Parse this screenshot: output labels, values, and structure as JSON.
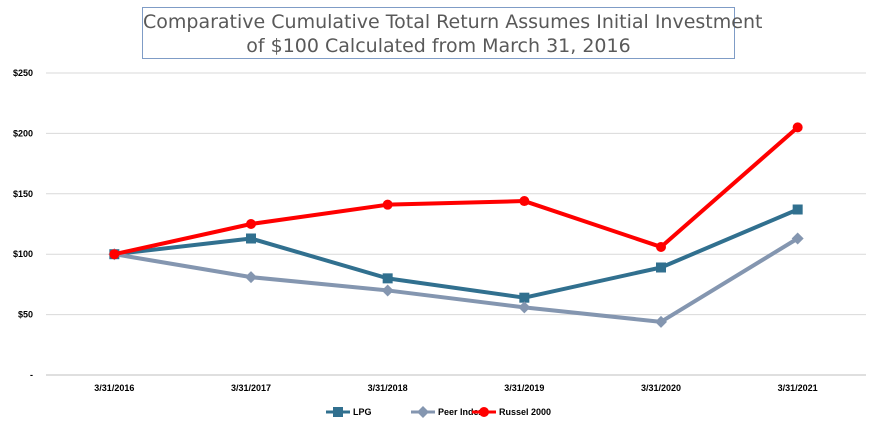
{
  "chart_data": {
    "type": "line",
    "title": "Comparative Cumulative Total Return Assumes Initial Investment of $100 Calculated from March 31, 2016",
    "title_lines": [
      "Comparative Cumulative Total Return Assumes Initial Investment",
      "of $100 Calculated from March 31, 2016"
    ],
    "categories": [
      "3/31/2016",
      "3/31/2017",
      "3/31/2018",
      "3/31/2019",
      "3/31/2020",
      "3/31/2021"
    ],
    "y_tick_labels": [
      "-",
      "$50",
      "$100",
      "$150",
      "$200",
      "$250"
    ],
    "y_tick_values": [
      0,
      50,
      100,
      150,
      200,
      250
    ],
    "ylim": [
      0,
      250
    ],
    "grid": true,
    "legend_position": "bottom",
    "series": [
      {
        "name": "LPG",
        "color": "#31708f",
        "marker": "square",
        "values": [
          100,
          113,
          80,
          64,
          89,
          137
        ]
      },
      {
        "name": "Peer Index",
        "color": "#8496b0",
        "marker": "diamond",
        "values": [
          100,
          81,
          70,
          56,
          44,
          113
        ]
      },
      {
        "name": "Russel 2000",
        "color": "#ff0000",
        "marker": "circle",
        "values": [
          100,
          125,
          141,
          144,
          106,
          205
        ]
      }
    ]
  }
}
